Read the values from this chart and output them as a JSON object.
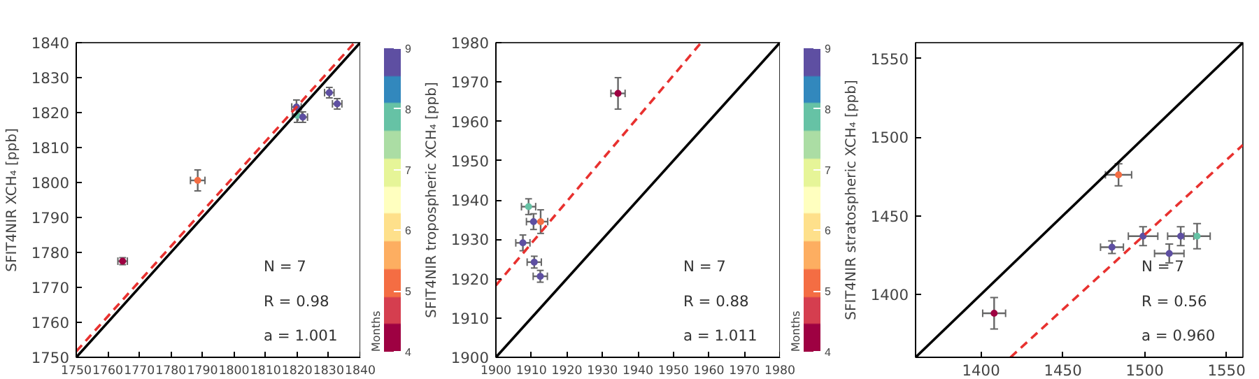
{
  "chart_data": [
    {
      "type": "scatter",
      "ylabel": "SFIT4NIR XCH₄ [ppb]",
      "clabel": "Months",
      "clim": [
        4,
        9
      ],
      "cticks": [
        4,
        5,
        6,
        7,
        8,
        9
      ],
      "xlim": [
        1750,
        1840
      ],
      "ylim": [
        1750,
        1840
      ],
      "xticks": [
        1750,
        1760,
        1770,
        1780,
        1790,
        1800,
        1810,
        1820,
        1830,
        1840
      ],
      "yticks": [
        1750,
        1760,
        1770,
        1780,
        1790,
        1800,
        1810,
        1820,
        1830,
        1840
      ],
      "grid": false,
      "annotations": [
        "N = 7",
        "R = 0.98",
        "a = 1.001"
      ],
      "series": [
        {
          "marker": "circle",
          "x": [
            1764.7,
            1788.5,
            1819.8,
            1820.0,
            1821.8,
            1830.2,
            1832.7
          ],
          "values": [
            1777.5,
            1800.6,
            1821.6,
            1819.2,
            1818.7,
            1825.7,
            1822.5
          ],
          "colors": [
            "#9e0142",
            "#f46d43",
            "#5e4fa2",
            "#66c2a5",
            "#5e4fa2",
            "#5e4fa2",
            "#5e4fa2"
          ],
          "xerrors": [
            1.5,
            2.3,
            1.5,
            1.5,
            1.5,
            1.5,
            1.5
          ],
          "errors": [
            1,
            3,
            2,
            2,
            1.5,
            1.5,
            1.5
          ]
        },
        {
          "type": "line",
          "x": [
            1750,
            1840
          ],
          "values": [
            1750,
            1840
          ],
          "color": "#000000",
          "line_style": "solid"
        },
        {
          "type": "line",
          "x": [
            1750,
            1838.2
          ],
          "values": [
            1751.7,
            1840
          ],
          "color": "#e8312f",
          "line_style": "dashed"
        }
      ]
    },
    {
      "type": "scatter",
      "ylabel": "SFIT4NIR tropospheric XCH₄ [ppb]",
      "clabel": "Months",
      "clim": [
        4,
        9
      ],
      "cticks": [
        4,
        5,
        6,
        7,
        8,
        9
      ],
      "xlim": [
        1900,
        1980
      ],
      "ylim": [
        1900,
        1980
      ],
      "xticks": [
        1900,
        1910,
        1920,
        1930,
        1940,
        1950,
        1960,
        1970,
        1980
      ],
      "yticks": [
        1900,
        1910,
        1920,
        1930,
        1940,
        1950,
        1960,
        1970,
        1980
      ],
      "grid": false,
      "annotations": [
        "N = 7",
        "R = 0.88",
        "a = 1.011"
      ],
      "series": [
        {
          "marker": "circle",
          "x": [
            1934.4,
            1909.2,
            1910.6,
            1912.6,
            1907.6,
            1910.8,
            1912.5
          ],
          "values": [
            1967.1,
            1938.3,
            1934.5,
            1934.5,
            1929.1,
            1924.2,
            1920.6
          ],
          "colors": [
            "#9e0142",
            "#66c2a5",
            "#5e4fa2",
            "#f46d43",
            "#5e4fa2",
            "#5e4fa2",
            "#5e4fa2"
          ],
          "xerrors": [
            2,
            2,
            2,
            2,
            2,
            2,
            2
          ],
          "errors": [
            4,
            2,
            2,
            3,
            2,
            1.5,
            1.5
          ]
        },
        {
          "type": "line",
          "x": [
            1900,
            1980
          ],
          "values": [
            1900,
            1980
          ],
          "color": "#000000",
          "line_style": "solid"
        },
        {
          "type": "line",
          "x": [
            1900,
            1957.8
          ],
          "values": [
            1918.3,
            1980
          ],
          "color": "#e8312f",
          "line_style": "dashed"
        }
      ]
    },
    {
      "type": "scatter",
      "ylabel": "SFIT4NIR stratospheric XCH₄ [ppb]",
      "xlim": [
        1360,
        1560
      ],
      "ylim": [
        1360,
        1560
      ],
      "xticks": [
        1400,
        1450,
        1500,
        1550
      ],
      "yticks": [
        1400,
        1450,
        1500,
        1550
      ],
      "grid": false,
      "annotations": [
        "N = 7",
        "R = 0.56",
        "a = 0.960"
      ],
      "series": [
        {
          "marker": "circle",
          "x": [
            1408,
            1484,
            1480,
            1499,
            1515,
            1522,
            1532
          ],
          "values": [
            1388,
            1476,
            1430,
            1437,
            1426,
            1437,
            1437
          ],
          "colors": [
            "#9e0142",
            "#f46d43",
            "#5e4fa2",
            "#5e4fa2",
            "#5e4fa2",
            "#5e4fa2",
            "#66c2a5"
          ],
          "xerrors": [
            7,
            8,
            7,
            9,
            9,
            8,
            8
          ],
          "errors": [
            10,
            7,
            4,
            6,
            6,
            6,
            8
          ]
        },
        {
          "type": "line",
          "x": [
            1360,
            1560
          ],
          "values": [
            1360,
            1560
          ],
          "color": "#000000",
          "line_style": "solid"
        },
        {
          "type": "line",
          "x": [
            1418,
            1560
          ],
          "values": [
            1360,
            1495
          ],
          "color": "#e8312f",
          "line_style": "dashed"
        }
      ]
    }
  ]
}
